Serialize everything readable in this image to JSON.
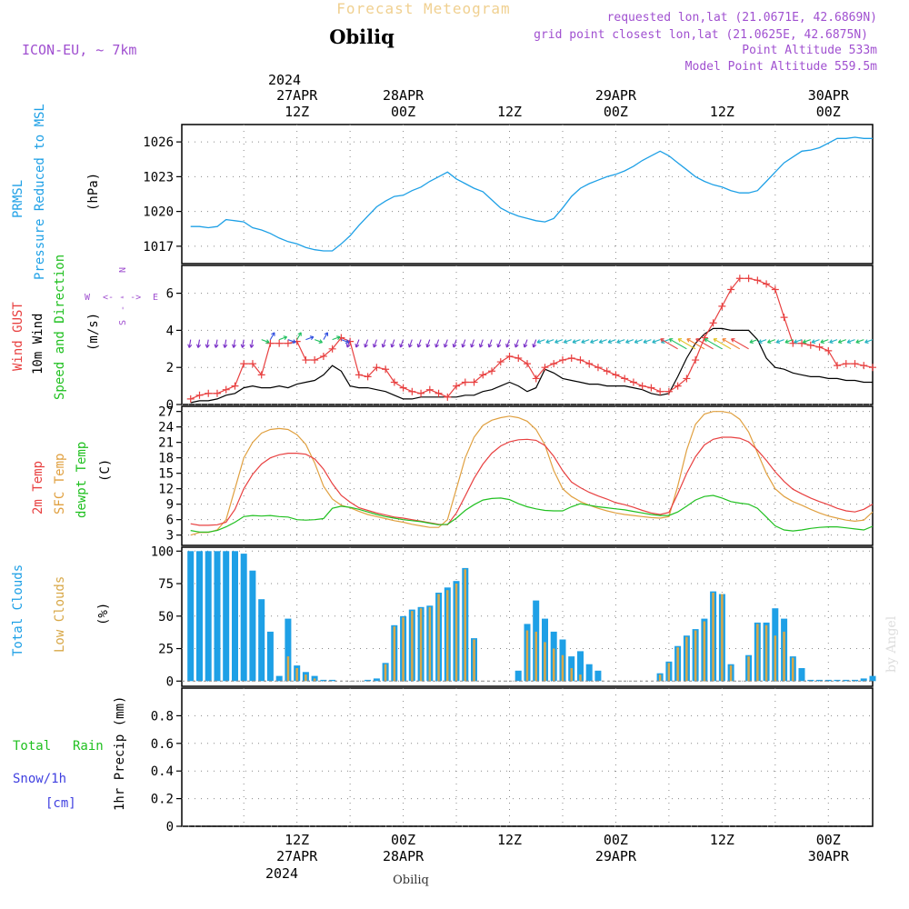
{
  "header": {
    "title": "Forecast Meteogram",
    "location": "Obiliq",
    "model": "ICON-EU, ~ 7km",
    "requested": "requested lon,lat (21.0671E, 42.6869N)",
    "gridpoint": "grid point closest lon,lat (21.0625E, 42.6875N)",
    "point_altitude": "Point Altitude 533m",
    "model_altitude": "Model Point Altitude 559.5m",
    "footer_location": "Obiliq",
    "watermark": "by Angel"
  },
  "time_axis": {
    "top_year": "2024",
    "bottom_year": "2024",
    "ticks": [
      {
        "t": 12,
        "hour": "12Z",
        "date": "27APR"
      },
      {
        "t": 24,
        "hour": "00Z",
        "date": "28APR"
      },
      {
        "t": 36,
        "hour": "12Z",
        "date": ""
      },
      {
        "t": 48,
        "hour": "00Z",
        "date": "29APR"
      },
      {
        "t": 60,
        "hour": "12Z",
        "date": ""
      },
      {
        "t": 72,
        "hour": "00Z",
        "date": "30APR"
      }
    ]
  },
  "panels": {
    "pressure": {
      "label1": "PRMSL",
      "label2": "Pressure Reduced to MSL",
      "unit": "(hPa)",
      "ticks": [
        "1017",
        "1020",
        "1023",
        "1026"
      ]
    },
    "wind": {
      "label1": "Wind GUST",
      "label2": "10m Wind",
      "label3": "Speed and Direction",
      "unit": "(m/s)",
      "ticks": [
        "0",
        "2",
        "4",
        "6"
      ],
      "compass": {
        "n": "N",
        "s": "S",
        "w": "W",
        "e": "E",
        "dash": "<- - ->"
      }
    },
    "temp": {
      "label1": "2m Temp",
      "label2": "SFC Temp",
      "label3": "dewpt Temp",
      "unit": "(C)",
      "ticks": [
        "3",
        "6",
        "9",
        "12",
        "15",
        "18",
        "21",
        "24",
        "27"
      ]
    },
    "clouds": {
      "label1": "Total Clouds",
      "label2": "Low Clouds",
      "unit": "(%)",
      "ticks": [
        "0",
        "25",
        "50",
        "75",
        "100"
      ]
    },
    "precip": {
      "label1": "Total",
      "label1b": "Rain",
      "label2": "Snow/1h",
      "label3": "[cm]",
      "unit": "1hr Precip (mm)",
      "ticks": [
        "0",
        "0.2",
        "0.4",
        "0.6",
        "0.8"
      ]
    }
  },
  "colors": {
    "pressure": "#1ea0e6",
    "gust": "#e84040",
    "wind": "#000000",
    "t2m": "#e84040",
    "sfc": "#e0a040",
    "dew": "#20c020",
    "total_clouds": "#1ea0e6",
    "low_clouds": "#d8a848",
    "label_purple": "#a050d0",
    "label_blue": "#4040e0",
    "label_green": "#20c020"
  },
  "chart_data": {
    "type": "line",
    "x_start": "2024-04-27 00Z",
    "x_end": "2024-04-30 06Z",
    "pressure_hpa": {
      "x": [
        0,
        1,
        2,
        3,
        4,
        5,
        6,
        7,
        8,
        9,
        10,
        11,
        12,
        13,
        14,
        15,
        16,
        17,
        18,
        19,
        20,
        21,
        22,
        23,
        24,
        25,
        26,
        27,
        28,
        29,
        30,
        31,
        32,
        33,
        34,
        35,
        36,
        37,
        38,
        39,
        40,
        41,
        42,
        43,
        44,
        45,
        46,
        47,
        48,
        49,
        50,
        51,
        52,
        53,
        54,
        55,
        56,
        57,
        58,
        59,
        60,
        61,
        62,
        63,
        64,
        65,
        66,
        67,
        68,
        69,
        70,
        71,
        72,
        73,
        74,
        75,
        76,
        77
      ],
      "y": [
        1018.7,
        1018.7,
        1018.6,
        1018.7,
        1019.3,
        1019.2,
        1019.1,
        1018.6,
        1018.4,
        1018.1,
        1017.7,
        1017.4,
        1017.2,
        1016.9,
        1016.7,
        1016.6,
        1016.6,
        1017.2,
        1017.9,
        1018.8,
        1019.6,
        1020.4,
        1020.9,
        1021.3,
        1021.4,
        1021.8,
        1022.1,
        1022.6,
        1023.0,
        1023.4,
        1022.8,
        1022.4,
        1022.0,
        1021.7,
        1021.0,
        1020.3,
        1019.9,
        1019.6,
        1019.4,
        1019.2,
        1019.1,
        1019.4,
        1020.3,
        1021.3,
        1022.0,
        1022.4,
        1022.7,
        1023.0,
        1023.2,
        1023.5,
        1023.9,
        1024.4,
        1024.8,
        1025.2,
        1024.8,
        1024.2,
        1023.6,
        1023.0,
        1022.6,
        1022.3,
        1022.1,
        1021.8,
        1021.6,
        1021.6,
        1021.8,
        1022.6,
        1023.4,
        1024.2,
        1024.7,
        1025.2,
        1025.3,
        1025.5,
        1025.9,
        1026.3,
        1026.3,
        1026.4,
        1026.3,
        1026.3
      ]
    },
    "wind_gust_ms": {
      "x": [
        0,
        1,
        2,
        3,
        4,
        5,
        6,
        7,
        8,
        9,
        10,
        11,
        12,
        13,
        14,
        15,
        16,
        17,
        18,
        19,
        20,
        21,
        22,
        23,
        24,
        25,
        26,
        27,
        28,
        29,
        30,
        31,
        32,
        33,
        34,
        35,
        36,
        37,
        38,
        39,
        40,
        41,
        42,
        43,
        44,
        45,
        46,
        47,
        48,
        49,
        50,
        51,
        52,
        53,
        54,
        55,
        56,
        57,
        58,
        59,
        60,
        61,
        62,
        63,
        64,
        65,
        66,
        67,
        68,
        69,
        70,
        71,
        72,
        73,
        74,
        75,
        76,
        77
      ],
      "y": [
        0.3,
        0.5,
        0.6,
        0.6,
        0.8,
        1.0,
        2.2,
        2.2,
        1.6,
        3.3,
        3.3,
        3.3,
        3.4,
        2.4,
        2.4,
        2.6,
        3.0,
        3.6,
        3.4,
        1.6,
        1.5,
        2.0,
        1.9,
        1.2,
        0.9,
        0.7,
        0.6,
        0.8,
        0.6,
        0.4,
        1.0,
        1.2,
        1.2,
        1.6,
        1.8,
        2.3,
        2.6,
        2.5,
        2.2,
        1.4,
        2.0,
        2.2,
        2.4,
        2.5,
        2.4,
        2.2,
        2.0,
        1.8,
        1.6,
        1.4,
        1.2,
        1.0,
        0.9,
        0.7,
        0.7,
        1.0,
        1.4,
        2.4,
        3.6,
        4.4,
        5.3,
        6.2,
        6.8,
        6.8,
        6.7,
        6.5,
        6.2,
        4.7,
        3.3,
        3.3,
        3.2,
        3.1,
        2.9,
        2.1,
        2.2,
        2.2,
        2.1,
        2.0
      ]
    },
    "wind_speed_ms": {
      "x": [
        0,
        1,
        2,
        3,
        4,
        5,
        6,
        7,
        8,
        9,
        10,
        11,
        12,
        13,
        14,
        15,
        16,
        17,
        18,
        19,
        20,
        21,
        22,
        23,
        24,
        25,
        26,
        27,
        28,
        29,
        30,
        31,
        32,
        33,
        34,
        35,
        36,
        37,
        38,
        39,
        40,
        41,
        42,
        43,
        44,
        45,
        46,
        47,
        48,
        49,
        50,
        51,
        52,
        53,
        54,
        55,
        56,
        57,
        58,
        59,
        60,
        61,
        62,
        63,
        64,
        65,
        66,
        67,
        68,
        69,
        70,
        71,
        72,
        73,
        74,
        75,
        76,
        77
      ],
      "y": [
        0.1,
        0.2,
        0.2,
        0.3,
        0.5,
        0.6,
        0.9,
        1.0,
        0.9,
        0.9,
        1.0,
        0.9,
        1.1,
        1.2,
        1.3,
        1.6,
        2.1,
        1.8,
        1.0,
        0.9,
        0.9,
        0.8,
        0.7,
        0.5,
        0.3,
        0.3,
        0.4,
        0.4,
        0.4,
        0.4,
        0.4,
        0.5,
        0.5,
        0.7,
        0.8,
        1.0,
        1.2,
        1.0,
        0.7,
        0.9,
        1.9,
        1.7,
        1.4,
        1.3,
        1.2,
        1.1,
        1.1,
        1.0,
        1.0,
        1.0,
        0.9,
        0.8,
        0.6,
        0.5,
        0.6,
        1.5,
        2.5,
        3.3,
        3.8,
        4.1,
        4.1,
        4.0,
        4.0,
        4.0,
        3.5,
        2.5,
        2.0,
        1.9,
        1.7,
        1.6,
        1.5,
        1.5,
        1.4,
        1.4,
        1.3,
        1.3,
        1.2,
        1.2
      ]
    },
    "temp_2m_c": {
      "x": [
        0,
        1,
        2,
        3,
        4,
        5,
        6,
        7,
        8,
        9,
        10,
        11,
        12,
        13,
        14,
        15,
        16,
        17,
        18,
        19,
        20,
        21,
        22,
        23,
        24,
        25,
        26,
        27,
        28,
        29,
        30,
        31,
        32,
        33,
        34,
        35,
        36,
        37,
        38,
        39,
        40,
        41,
        42,
        43,
        44,
        45,
        46,
        47,
        48,
        49,
        50,
        51,
        52,
        53,
        54,
        55,
        56,
        57,
        58,
        59,
        60,
        61,
        62,
        63,
        64,
        65,
        66,
        67,
        68,
        69,
        70,
        71,
        72,
        73,
        74,
        75,
        76,
        77
      ],
      "y": [
        5.2,
        4.9,
        4.9,
        5.0,
        5.5,
        8.0,
        12.0,
        14.8,
        16.8,
        18.0,
        18.6,
        18.9,
        18.9,
        18.7,
        17.8,
        15.8,
        13.0,
        10.7,
        9.4,
        8.3,
        7.8,
        7.3,
        6.9,
        6.5,
        6.3,
        6.0,
        5.7,
        5.4,
        5.1,
        5.0,
        7.3,
        10.6,
        14.0,
        16.8,
        18.9,
        20.3,
        21.1,
        21.5,
        21.6,
        21.4,
        20.4,
        18.3,
        15.5,
        13.3,
        12.2,
        11.3,
        10.6,
        10.0,
        9.3,
        8.9,
        8.4,
        7.8,
        7.3,
        7.0,
        7.4,
        11.0,
        15.0,
        18.2,
        20.5,
        21.6,
        22.0,
        22.0,
        21.8,
        21.1,
        19.5,
        17.5,
        15.3,
        13.4,
        11.9,
        11.0,
        10.2,
        9.5,
        8.9,
        8.2,
        7.7,
        7.5,
        8.0,
        9.0
      ]
    },
    "temp_sfc_c": {
      "x": [
        0,
        1,
        2,
        3,
        4,
        5,
        6,
        7,
        8,
        9,
        10,
        11,
        12,
        13,
        14,
        15,
        16,
        17,
        18,
        19,
        20,
        21,
        22,
        23,
        24,
        25,
        26,
        27,
        28,
        29,
        30,
        31,
        32,
        33,
        34,
        35,
        36,
        37,
        38,
        39,
        40,
        41,
        42,
        43,
        44,
        45,
        46,
        47,
        48,
        49,
        50,
        51,
        52,
        53,
        54,
        55,
        56,
        57,
        58,
        59,
        60,
        61,
        62,
        63,
        64,
        65,
        66,
        67,
        68,
        69,
        70,
        71,
        72,
        73,
        74,
        75,
        76,
        77
      ],
      "y": [
        3.0,
        3.5,
        3.5,
        4.0,
        6.0,
        12.0,
        18.0,
        21.0,
        22.8,
        23.5,
        23.7,
        23.5,
        22.5,
        20.6,
        17.0,
        12.5,
        10.0,
        8.8,
        8.3,
        7.6,
        7.0,
        6.6,
        6.2,
        5.8,
        5.5,
        5.1,
        4.8,
        4.5,
        4.5,
        6.0,
        12.0,
        18.0,
        22.0,
        24.3,
        25.3,
        25.8,
        26.1,
        25.8,
        25.1,
        23.5,
        20.5,
        15.5,
        12.0,
        10.5,
        9.5,
        8.8,
        8.2,
        7.7,
        7.3,
        7.0,
        6.8,
        6.6,
        6.4,
        6.3,
        6.6,
        12.5,
        19.5,
        24.5,
        26.5,
        27.0,
        27.0,
        26.7,
        25.5,
        23.0,
        19.0,
        15.0,
        12.0,
        10.5,
        9.5,
        8.8,
        8.0,
        7.3,
        6.7,
        6.3,
        5.9,
        5.7,
        5.9,
        7.5
      ]
    },
    "temp_dew_c": {
      "x": [
        0,
        1,
        2,
        3,
        4,
        5,
        6,
        7,
        8,
        9,
        10,
        11,
        12,
        13,
        14,
        15,
        16,
        17,
        18,
        19,
        20,
        21,
        22,
        23,
        24,
        25,
        26,
        27,
        28,
        29,
        30,
        31,
        32,
        33,
        34,
        35,
        36,
        37,
        38,
        39,
        40,
        41,
        42,
        43,
        44,
        45,
        46,
        47,
        48,
        49,
        50,
        51,
        52,
        53,
        54,
        55,
        56,
        57,
        58,
        59,
        60,
        61,
        62,
        63,
        64,
        65,
        66,
        67,
        68,
        69,
        70,
        71,
        72,
        73,
        74,
        75,
        76,
        77
      ],
      "y": [
        3.9,
        3.6,
        3.6,
        3.9,
        4.6,
        5.5,
        6.6,
        6.8,
        6.7,
        6.8,
        6.6,
        6.5,
        6.0,
        5.9,
        6.0,
        6.2,
        8.2,
        8.6,
        8.4,
        8.0,
        7.5,
        7.0,
        6.6,
        6.3,
        6.0,
        5.8,
        5.6,
        5.3,
        5.0,
        5.1,
        6.3,
        7.8,
        8.9,
        9.8,
        10.1,
        10.2,
        9.9,
        9.1,
        8.5,
        8.1,
        7.8,
        7.7,
        7.7,
        8.5,
        9.1,
        8.8,
        8.5,
        8.3,
        8.1,
        7.9,
        7.6,
        7.3,
        7.0,
        6.8,
        6.8,
        7.5,
        8.6,
        9.8,
        10.5,
        10.7,
        10.2,
        9.5,
        9.2,
        9.0,
        8.2,
        6.5,
        4.8,
        4.0,
        3.8,
        4.0,
        4.3,
        4.5,
        4.6,
        4.6,
        4.4,
        4.2,
        4.0,
        4.7
      ]
    },
    "total_clouds_pct": {
      "x": [
        0,
        1,
        2,
        3,
        4,
        5,
        6,
        7,
        8,
        9,
        10,
        11,
        12,
        13,
        14,
        15,
        16,
        17,
        18,
        19,
        20,
        21,
        22,
        23,
        24,
        25,
        26,
        27,
        28,
        29,
        30,
        31,
        32,
        33,
        34,
        35,
        36,
        37,
        38,
        39,
        40,
        41,
        42,
        43,
        44,
        45,
        46,
        47,
        48,
        49,
        50,
        51,
        52,
        53,
        54,
        55,
        56,
        57,
        58,
        59,
        60,
        61,
        62,
        63,
        64,
        65,
        66,
        67,
        68,
        69,
        70,
        71,
        72,
        73,
        74,
        75,
        76,
        77
      ],
      "y": [
        100,
        100,
        100,
        100,
        100,
        100,
        98,
        85,
        63,
        38,
        4,
        48,
        12,
        7,
        4,
        1,
        1,
        0,
        0,
        0,
        1,
        2,
        14,
        43,
        50,
        55,
        57,
        58,
        68,
        72,
        77,
        87,
        33,
        0,
        0,
        0,
        0,
        8,
        44,
        62,
        48,
        38,
        32,
        19,
        23,
        13,
        8,
        0,
        0,
        0,
        0,
        0,
        0,
        6,
        15,
        27,
        35,
        40,
        48,
        69,
        67,
        13,
        0,
        20,
        45,
        45,
        56,
        48,
        19,
        10,
        1,
        1,
        1,
        1,
        1,
        1,
        2,
        4
      ]
    },
    "low_clouds_pct": {
      "x": [
        0,
        1,
        2,
        3,
        4,
        5,
        6,
        7,
        8,
        9,
        10,
        11,
        12,
        13,
        14,
        15,
        16,
        17,
        18,
        19,
        20,
        21,
        22,
        23,
        24,
        25,
        26,
        27,
        28,
        29,
        30,
        31,
        32,
        33,
        34,
        35,
        36,
        37,
        38,
        39,
        40,
        41,
        42,
        43,
        44,
        45,
        46,
        47,
        48,
        49,
        50,
        51,
        52,
        53,
        54,
        55,
        56,
        57,
        58,
        59,
        60,
        61,
        62,
        63,
        64,
        65,
        66,
        67,
        68,
        69,
        70,
        71,
        72,
        73,
        74,
        75,
        76,
        77
      ],
      "y": [
        0,
        0,
        0,
        0,
        0,
        0,
        0,
        0,
        0,
        0,
        0,
        19,
        10,
        5,
        2,
        0,
        0,
        0,
        0,
        0,
        0,
        0,
        13,
        42,
        49,
        54,
        56,
        57,
        67,
        70,
        75,
        86,
        32,
        0,
        0,
        0,
        0,
        0,
        39,
        38,
        30,
        25,
        20,
        10,
        5,
        0,
        0,
        0,
        0,
        0,
        0,
        0,
        0,
        5,
        14,
        26,
        34,
        39,
        46,
        68,
        67,
        12,
        0,
        19,
        44,
        43,
        35,
        38,
        18,
        0,
        0,
        0,
        0,
        0,
        0,
        0,
        0,
        0
      ]
    },
    "precip_mm": {
      "x": [
        0,
        77
      ],
      "y": [
        0,
        0
      ]
    },
    "ylim": {
      "pressure": [
        1015.5,
        1027.5
      ],
      "wind": [
        0,
        7.5
      ],
      "temp": [
        1,
        28
      ],
      "clouds": [
        -4,
        103
      ],
      "precip": [
        0,
        1
      ]
    },
    "wind_dir_note": "arrows show 10m wind direction"
  }
}
